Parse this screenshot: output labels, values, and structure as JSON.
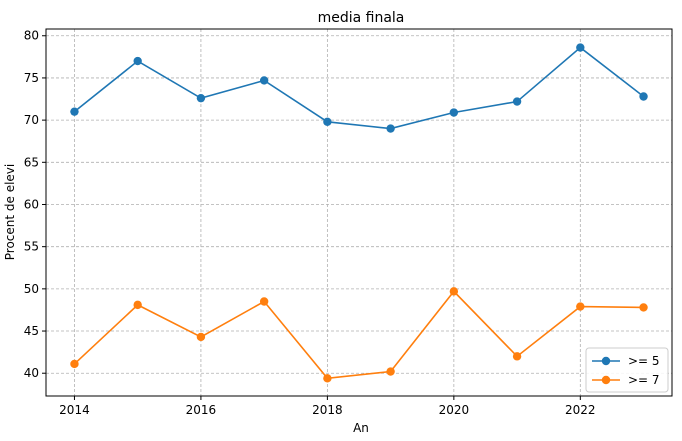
{
  "chart_data": {
    "type": "line",
    "title": "media finala",
    "xlabel": "An",
    "ylabel": "Procent de elevi",
    "x": [
      2014,
      2015,
      2016,
      2017,
      2018,
      2019,
      2020,
      2021,
      2022,
      2023
    ],
    "xticks": [
      "2014",
      "2016",
      "2018",
      "2020",
      "2022"
    ],
    "yticks": [
      "40",
      "45",
      "50",
      "55",
      "60",
      "65",
      "70",
      "75",
      "80"
    ],
    "xlim": [
      2013.55,
      2023.45
    ],
    "ylim": [
      37.3,
      80.8
    ],
    "grid": true,
    "legend_position": "lower-right",
    "series": [
      {
        "name": ">= 5",
        "color": "#1f77b4",
        "values": [
          71.0,
          77.0,
          72.6,
          74.7,
          69.8,
          69.0,
          70.9,
          72.2,
          78.6,
          72.8
        ]
      },
      {
        "name": ">= 7",
        "color": "#ff7f0e",
        "values": [
          41.1,
          48.1,
          44.3,
          48.5,
          39.4,
          40.2,
          49.7,
          42.0,
          47.9,
          47.8
        ]
      }
    ]
  }
}
